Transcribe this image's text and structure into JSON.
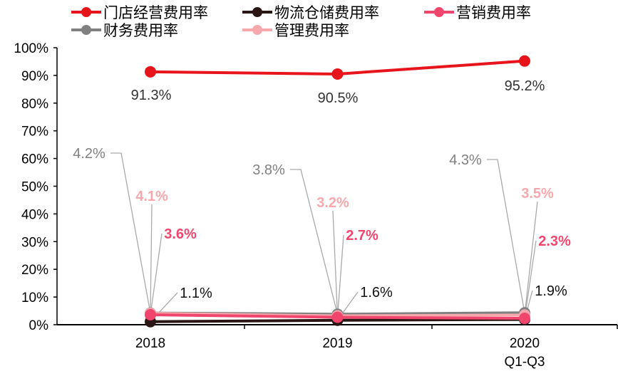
{
  "chart_data": {
    "type": "line",
    "categories": [
      "2018",
      "2019",
      "2020\nQ1-Q3"
    ],
    "category_lines": [
      [
        "2018"
      ],
      [
        "2019"
      ],
      [
        "2020",
        "Q1-Q3"
      ]
    ],
    "ylim": [
      0,
      100
    ],
    "yticks": [
      "0%",
      "10%",
      "20%",
      "30%",
      "40%",
      "50%",
      "60%",
      "70%",
      "80%",
      "90%",
      "100%"
    ],
    "legend_position": "top",
    "series": [
      {
        "name": "门店经营费用率",
        "color": "#e8141c",
        "values": [
          91.3,
          90.5,
          95.2
        ],
        "labels": [
          "91.3%",
          "90.5%",
          "95.2%"
        ]
      },
      {
        "name": "物流仓储费用率",
        "color": "#2a1715",
        "values": [
          1.1,
          1.6,
          1.9
        ],
        "labels": [
          "1.1%",
          "1.6%",
          "1.9%"
        ]
      },
      {
        "name": "营销费用率",
        "color": "#f0466e",
        "values": [
          3.6,
          2.7,
          2.3
        ],
        "labels": [
          "3.6%",
          "2.7%",
          "2.3%"
        ]
      },
      {
        "name": "财务费用率",
        "color": "#808080",
        "values": [
          4.2,
          3.8,
          4.3
        ],
        "labels": [
          "4.2%",
          "3.8%",
          "4.3%"
        ]
      },
      {
        "name": "管理费用率",
        "color": "#f7a8ad",
        "values": [
          4.1,
          3.2,
          3.5
        ],
        "labels": [
          "4.1%",
          "3.2%",
          "3.5%"
        ]
      }
    ]
  }
}
